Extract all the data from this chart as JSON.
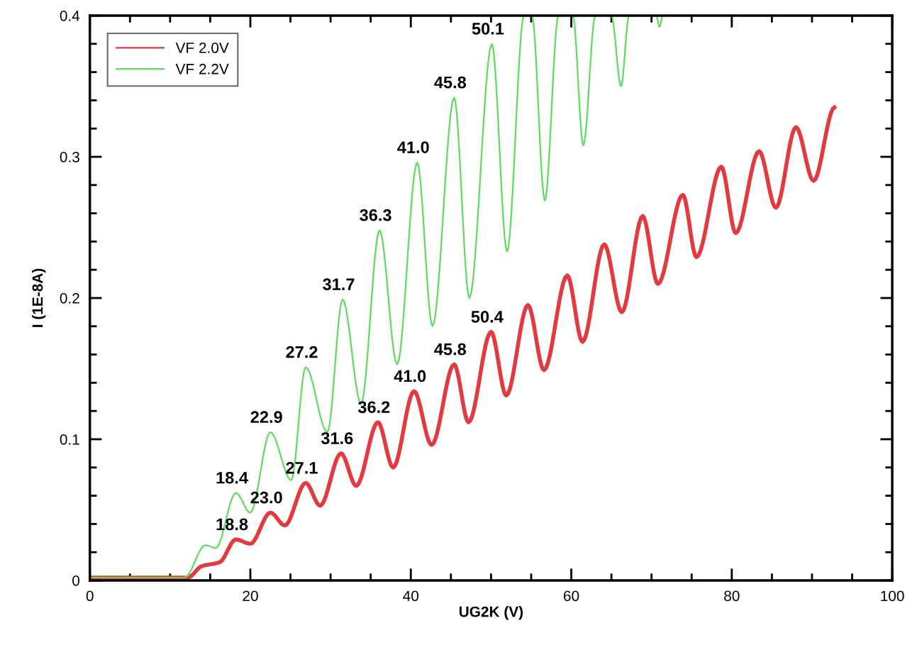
{
  "chart_data": {
    "type": "line",
    "xlabel": "UG2K (V)",
    "ylabel": "I (1E-8A)",
    "xlim": [
      0,
      100
    ],
    "ylim": [
      0,
      0.4
    ],
    "xticks": [
      0,
      {
        "value": 5,
        "label": null
      },
      {
        "value": 10,
        "label": null
      },
      {
        "value": 15,
        "label": null
      },
      20,
      {
        "value": 25,
        "label": null
      },
      {
        "value": 30,
        "label": null
      },
      {
        "value": 35,
        "label": null
      },
      40,
      {
        "value": 45,
        "label": null
      },
      {
        "value": 50,
        "label": null
      },
      {
        "value": 55,
        "label": null
      },
      60,
      {
        "value": 65,
        "label": null
      },
      {
        "value": 70,
        "label": null
      },
      {
        "value": 75,
        "label": null
      },
      80,
      {
        "value": 85,
        "label": null
      },
      {
        "value": 90,
        "label": null
      },
      {
        "value": 95,
        "label": null
      },
      100
    ],
    "yticks": [
      0,
      {
        "value": 0.02,
        "label": null
      },
      {
        "value": 0.04,
        "label": null
      },
      {
        "value": 0.06,
        "label": null
      },
      {
        "value": 0.08,
        "label": null
      },
      0.1,
      {
        "value": 0.12,
        "label": null
      },
      {
        "value": 0.14,
        "label": null
      },
      {
        "value": 0.16,
        "label": null
      },
      {
        "value": 0.18,
        "label": null
      },
      0.2,
      {
        "value": 0.22,
        "label": null
      },
      {
        "value": 0.24,
        "label": null
      },
      {
        "value": 0.26,
        "label": null
      },
      {
        "value": 0.28,
        "label": null
      },
      0.3,
      {
        "value": 0.32,
        "label": null
      },
      {
        "value": 0.34,
        "label": null
      },
      {
        "value": 0.36,
        "label": null
      },
      {
        "value": 0.38,
        "label": null
      },
      0.4
    ],
    "grid": false,
    "legend": "top left",
    "marker": "none",
    "line_style": "solid",
    "series": [
      {
        "name": "VF 2.0V",
        "color": "#e23a3e",
        "x": [
          0,
          12.2,
          13.9,
          16.2,
          18.2,
          20.0,
          22.5,
          24.3,
          26.9,
          28.7,
          31.3,
          33.2,
          35.9,
          37.8,
          40.4,
          42.6,
          45.4,
          47.2,
          50.0,
          51.9,
          54.6,
          56.6,
          59.5,
          61.4,
          64.1,
          66.3,
          68.9,
          70.8,
          73.9,
          75.6,
          78.7,
          80.5,
          83.4,
          85.5,
          88.0,
          90.2,
          92.8
        ],
        "values": [
          0.002,
          0.002,
          0.01,
          0.013,
          0.029,
          0.026,
          0.048,
          0.039,
          0.069,
          0.053,
          0.09,
          0.067,
          0.112,
          0.08,
          0.134,
          0.096,
          0.153,
          0.112,
          0.176,
          0.131,
          0.195,
          0.149,
          0.216,
          0.169,
          0.238,
          0.19,
          0.258,
          0.21,
          0.273,
          0.229,
          0.293,
          0.246,
          0.304,
          0.264,
          0.321,
          0.283,
          0.335
        ]
      },
      {
        "name": "VF 2.2V",
        "color": "#5fdc5f",
        "x": [
          0,
          11.8,
          14.4,
          15.7,
          18.2,
          20.0,
          22.5,
          25.1,
          26.9,
          29.6,
          31.5,
          33.8,
          36.1,
          38.3,
          40.8,
          42.7,
          45.4,
          47.3,
          50.1,
          52.0,
          54.1,
          54.6,
          55.1,
          56.7,
          58.4,
          59.3,
          60.2,
          61.5,
          63.0,
          64.0,
          65.0,
          66.2,
          67.2,
          68.9,
          70.6,
          71.0,
          71.4
        ],
        "values": [
          0.002,
          0.002,
          0.025,
          0.023,
          0.062,
          0.048,
          0.105,
          0.071,
          0.151,
          0.105,
          0.199,
          0.125,
          0.248,
          0.153,
          0.296,
          0.18,
          0.342,
          0.2,
          0.38,
          0.233,
          0.4,
          null,
          0.4,
          0.269,
          0.4,
          null,
          0.4,
          0.308,
          0.4,
          null,
          0.4,
          0.35,
          0.4,
          null,
          0.4,
          0.392,
          0.4
        ]
      }
    ],
    "annotations": [
      {
        "text": "18.4",
        "x": 18.2,
        "y": 0.062
      },
      {
        "text": "22.9",
        "x": 22.5,
        "y": 0.105
      },
      {
        "text": "27.2",
        "x": 26.9,
        "y": 0.151
      },
      {
        "text": "31.7",
        "x": 31.5,
        "y": 0.199
      },
      {
        "text": "36.3",
        "x": 36.1,
        "y": 0.248
      },
      {
        "text": "41.0",
        "x": 40.8,
        "y": 0.296
      },
      {
        "text": "45.8",
        "x": 45.4,
        "y": 0.342
      },
      {
        "text": "50.1",
        "x": 50.1,
        "y": 0.38
      },
      {
        "text": "18.8",
        "x": 18.2,
        "y": 0.029
      },
      {
        "text": "23.0",
        "x": 22.5,
        "y": 0.048
      },
      {
        "text": "27.1",
        "x": 26.9,
        "y": 0.069
      },
      {
        "text": "31.6",
        "x": 31.3,
        "y": 0.09
      },
      {
        "text": "36.2",
        "x": 35.9,
        "y": 0.112
      },
      {
        "text": "41.0",
        "x": 40.4,
        "y": 0.134
      },
      {
        "text": "45.8",
        "x": 45.4,
        "y": 0.153
      },
      {
        "text": "50.4",
        "x": 50.0,
        "y": 0.176
      }
    ]
  }
}
